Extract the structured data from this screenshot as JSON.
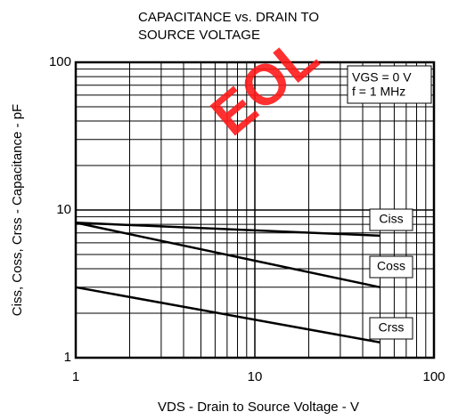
{
  "chart_data": {
    "type": "line",
    "title": [
      "CAPACITANCE vs. DRAIN TO",
      "SOURCE VOLTAGE"
    ],
    "x_label": "VDS - Drain to Source Voltage - V",
    "y_label": "Ciss, Coss, Crss - Capacitance - pF",
    "annotations": [
      "VGS = 0 V",
      "f = 1 MHz"
    ],
    "watermark": "EOL",
    "x": [
      1,
      50
    ],
    "series": [
      {
        "name": "Ciss",
        "color": "#000000",
        "values": [
          8.2,
          6.7
        ]
      },
      {
        "name": "Coss",
        "color": "#000000",
        "values": [
          8.2,
          3.0
        ]
      },
      {
        "name": "Crss",
        "color": "#000000",
        "values": [
          3.0,
          1.27
        ]
      }
    ],
    "xlim": [
      1,
      100
    ],
    "ylim": [
      1,
      100
    ],
    "xticks": [
      1,
      10,
      100
    ],
    "yticks": [
      1,
      10,
      100
    ],
    "xminorticks": [
      2,
      3,
      4,
      5,
      6,
      7,
      8,
      9,
      20,
      30,
      40,
      50,
      60,
      70,
      80,
      90
    ],
    "yminorticks": [
      2,
      3,
      4,
      5,
      6,
      7,
      8,
      9,
      20,
      30,
      40,
      50,
      60,
      70,
      80,
      90
    ],
    "log_x": true,
    "log_y": true,
    "grid": true
  }
}
